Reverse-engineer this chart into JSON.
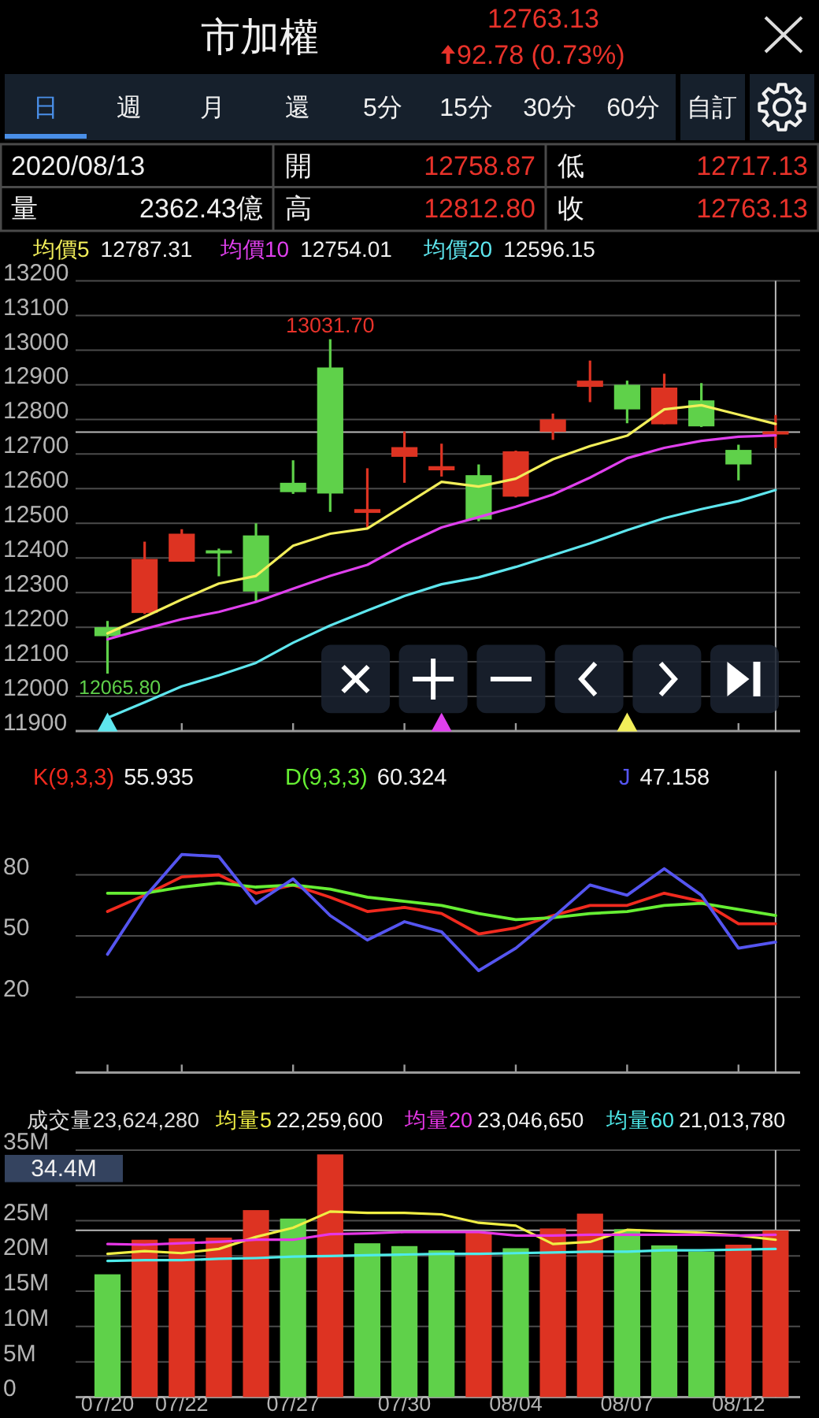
{
  "chart_data": [
    {
      "type": "other",
      "title": "市加權",
      "annotations": [
        "12763.13",
        "92.78 (0.73%)",
        "日",
        "週",
        "月",
        "還",
        "5分",
        "15分",
        "30分",
        "60分",
        "自訂",
        "2020/08/13",
        "開",
        "12758.87",
        "低",
        "12717.13",
        "量",
        "2362.43億",
        "高",
        "12812.80",
        "收",
        "12763.13"
      ]
    },
    {
      "type": "candlestick",
      "categories": [
        null,
        null,
        null,
        null,
        null,
        null,
        null,
        null,
        null,
        null,
        null,
        null,
        null,
        null,
        null,
        null,
        null,
        null,
        null
      ],
      "ohlc": [
        [
          12200,
          12218,
          12065.8,
          12174
        ],
        [
          12241,
          12447,
          12238,
          12397
        ],
        [
          12389,
          12483,
          12389,
          12470
        ],
        [
          12420,
          12427,
          12347,
          12415
        ],
        [
          12465,
          12500,
          12271,
          12303
        ],
        [
          12617,
          12682,
          12585,
          12590
        ],
        [
          12950,
          13031.7,
          12533,
          12586
        ],
        [
          12530,
          12659,
          12488,
          12541
        ],
        [
          12692,
          12765,
          12617,
          12720
        ],
        [
          12653,
          12730,
          12635,
          12665
        ],
        [
          12639,
          12670,
          12506,
          12511
        ],
        [
          12577,
          12710,
          12575,
          12708
        ],
        [
          12764,
          12817,
          12741,
          12800
        ],
        [
          12894,
          12970,
          12850,
          12912
        ],
        [
          12900,
          12912,
          12789,
          12829
        ],
        [
          12786,
          12932,
          12786,
          12892
        ],
        [
          12855,
          12905,
          12778,
          12780
        ],
        [
          12712,
          12727,
          12624,
          12670
        ],
        [
          12758.87,
          12812.8,
          12717.13,
          12763.13
        ]
      ],
      "colors": [
        "#5fd14a",
        "#dd3322",
        "#dd3322",
        "#5fd14a",
        "#5fd14a",
        "#5fd14a",
        "#5fd14a",
        "#dd3322",
        "#dd3322",
        "#dd3322",
        "#5fd14a",
        "#dd3322",
        "#dd3322",
        "#dd3322",
        "#5fd14a",
        "#dd3322",
        "#5fd14a",
        "#5fd14a",
        "#dd3322"
      ],
      "series": [
        {
          "name": "均價5",
          "type": "line",
          "color": "#f2ee5a",
          "values": [
            12182,
            12230,
            12280,
            12326,
            12348,
            12435,
            12470,
            12485,
            12552,
            12620,
            12606,
            12629,
            12685,
            12723,
            12753,
            12829,
            12841,
            12814,
            12787
          ]
        },
        {
          "name": "均價10",
          "type": "line",
          "color": "#e040ee",
          "values": [
            12165,
            12195,
            12223,
            12244,
            12273,
            12311,
            12348,
            12380,
            12438,
            12488,
            12518,
            12548,
            12583,
            12632,
            12688,
            12718,
            12738,
            12750,
            12754
          ]
        },
        {
          "name": "均價20",
          "type": "line",
          "color": "#5ee6ee",
          "values": [
            11938,
            11983,
            12029,
            12061,
            12097,
            12155,
            12205,
            12248,
            12290,
            12324,
            12344,
            12374,
            12408,
            12442,
            12480,
            12515,
            12541,
            12564,
            12596
          ]
        },
        {
          "type": "scatter",
          "marker": "triangle",
          "color": "#5ee6ee",
          "values": [
            11926,
            null,
            null,
            null,
            null,
            null,
            null,
            null,
            null,
            null,
            null,
            null,
            null,
            null,
            null,
            null,
            null,
            null,
            null
          ]
        },
        {
          "type": "scatter",
          "marker": "triangle",
          "color": "#e040ee",
          "values": [
            null,
            null,
            null,
            null,
            null,
            null,
            null,
            null,
            null,
            11926,
            null,
            null,
            null,
            null,
            null,
            null,
            null,
            null,
            null
          ]
        },
        {
          "type": "scatter",
          "marker": "triangle",
          "color": "#f2ee5a",
          "values": [
            null,
            null,
            null,
            null,
            null,
            null,
            null,
            null,
            null,
            null,
            null,
            null,
            null,
            null,
            11926,
            null,
            null,
            null,
            null
          ]
        }
      ],
      "ylim": [
        11900,
        13200
      ],
      "yticks": [
        11900,
        12000,
        12100,
        12200,
        12300,
        12400,
        12500,
        12600,
        12700,
        12800,
        12900,
        13000,
        13100,
        13200
      ],
      "grid": "y",
      "tick_labels": "y",
      "legend": "top",
      "ref_lines": [
        {
          "axis": "y",
          "value": 12763.13
        }
      ],
      "annotations": [
        "12787.31",
        "12754.01",
        "12596.15",
        "12065.80",
        {
          "text": "13031.70",
          "y": 13031.7
        }
      ]
    },
    {
      "type": "line",
      "categories": [
        null,
        null,
        null,
        null,
        null,
        null,
        null,
        null,
        null,
        null,
        null,
        null,
        null,
        null,
        null,
        null,
        null,
        null,
        null
      ],
      "series": [
        {
          "name": "K(9,3,3)",
          "color": "#f02a1e",
          "values": [
            62,
            70,
            79,
            80,
            71,
            75,
            69,
            62,
            64,
            61,
            51,
            54,
            60,
            65,
            65,
            71,
            67,
            56,
            56
          ]
        },
        {
          "name": "D(9,3,3)",
          "color": "#66ee33",
          "values": [
            71,
            71,
            74,
            76,
            74,
            75,
            73,
            69,
            67,
            65,
            61,
            58,
            59,
            61,
            62,
            65,
            66,
            63,
            60
          ]
        },
        {
          "name": "J",
          "color": "#5555f0",
          "values": [
            41,
            69,
            90,
            89,
            66,
            78,
            60,
            48,
            57,
            52,
            33,
            44,
            59,
            75,
            70,
            83,
            70,
            44,
            47
          ]
        }
      ],
      "ylim": [
        -17,
        131
      ],
      "yticks": [
        20,
        50,
        80
      ],
      "grid": "y",
      "tick_labels": "y",
      "legend": "top",
      "annotations": [
        "55.935",
        "60.324",
        "47.158"
      ]
    },
    {
      "type": "bar",
      "categories": [
        "07/20",
        null,
        "07/22",
        null,
        null,
        "07/27",
        null,
        null,
        "07/30",
        null,
        null,
        "08/04",
        null,
        null,
        "08/07",
        null,
        null,
        "08/12",
        null
      ],
      "series": [
        {
          "type": "bar",
          "colors": [
            "#5fd14a",
            "#dd3322",
            "#dd3322",
            "#dd3322",
            "#dd3322",
            "#5fd14a",
            "#dd3322",
            "#5fd14a",
            "#5fd14a",
            "#5fd14a",
            "#dd3322",
            "#5fd14a",
            "#dd3322",
            "#dd3322",
            "#5fd14a",
            "#5fd14a",
            "#5fd14a",
            "#dd3322",
            "#dd3322"
          ],
          "values": [
            17400000,
            22300000,
            22500000,
            22600000,
            26500000,
            25300000,
            34400000,
            21800000,
            21400000,
            20800000,
            23400000,
            21100000,
            23900000,
            26000000,
            23800000,
            21500000,
            20600000,
            21600000,
            23624280
          ]
        },
        {
          "name": "均量5",
          "type": "line",
          "color": "#f0ee44",
          "values": [
            20300000,
            20700000,
            20400000,
            21000000,
            22700000,
            24000000,
            26300000,
            26100000,
            26100000,
            25900000,
            24700000,
            24300000,
            21700000,
            22000000,
            23700000,
            23500000,
            23300000,
            22900000,
            22300000
          ]
        },
        {
          "name": "均量20",
          "type": "line",
          "color": "#e636e6",
          "values": [
            21700000,
            21600000,
            21800000,
            22000000,
            22300000,
            22300000,
            23100000,
            23200000,
            23400000,
            23400000,
            23400000,
            22900000,
            22900000,
            23000000,
            23000000,
            23000000,
            23000000,
            22900000,
            23000000
          ]
        },
        {
          "name": "均量60",
          "type": "line",
          "color": "#4eeaea",
          "values": [
            19300000,
            19400000,
            19400000,
            19600000,
            19700000,
            19900000,
            20000000,
            20100000,
            20200000,
            20300000,
            20300000,
            20400000,
            20500000,
            20600000,
            20600000,
            20800000,
            20800000,
            20900000,
            21000000
          ]
        }
      ],
      "ylim": [
        0,
        35000000
      ],
      "yticks": [
        0,
        {
          "value": 5000000,
          "label": "5M"
        },
        {
          "value": 10000000,
          "label": "10M"
        },
        {
          "value": 15000000,
          "label": "15M"
        },
        {
          "value": 20000000,
          "label": "20M"
        },
        {
          "value": 25000000,
          "label": "25M"
        },
        {
          "value": 30000000,
          "label": null
        },
        {
          "value": 35000000,
          "label": "35M"
        }
      ],
      "grid": "y",
      "legend": "top",
      "ref_lines": [
        {
          "axis": "y",
          "value": 23624280
        }
      ],
      "annotations": [
        "成交量23,624,280",
        "22,259,600",
        "23,046,650",
        "21,013,780",
        "34.4M"
      ]
    }
  ]
}
